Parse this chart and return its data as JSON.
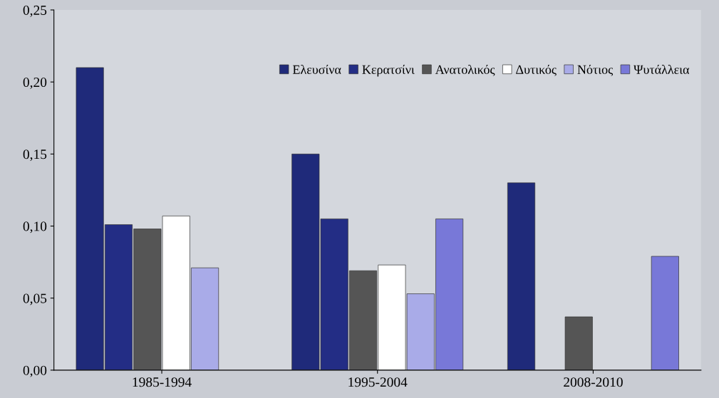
{
  "chart_data": {
    "type": "bar",
    "categories": [
      "1985-1994",
      "1995-2004",
      "2008-2010"
    ],
    "series": [
      {
        "name": "Ελευσίνα",
        "color": "#1f2a7a",
        "values": [
          0.21,
          0.15,
          0.13
        ]
      },
      {
        "name": "Κερατσίνι",
        "color": "#232d85",
        "values": [
          0.101,
          0.105,
          null
        ]
      },
      {
        "name": "Ανατολικός",
        "color": "#555555",
        "values": [
          0.098,
          0.069,
          0.037
        ]
      },
      {
        "name": "Δυτικός",
        "color": "#ffffff",
        "values": [
          0.107,
          0.073,
          null
        ]
      },
      {
        "name": "Νότιος",
        "color": "#a9abe8",
        "values": [
          0.071,
          0.053,
          null
        ]
      },
      {
        "name": "Ψυτάλλεια",
        "color": "#7878d8",
        "values": [
          null,
          0.105,
          0.079
        ]
      }
    ],
    "ylim": [
      0,
      0.25
    ],
    "yticks": [
      {
        "value": 0,
        "label": "0,00"
      },
      {
        "value": 0.05,
        "label": "0,05"
      },
      {
        "value": 0.1,
        "label": "0,10"
      },
      {
        "value": 0.15,
        "label": "0,15"
      },
      {
        "value": 0.2,
        "label": "0,20"
      },
      {
        "value": 0.25,
        "label": "0,25"
      }
    ],
    "grid": false,
    "legend": "top right"
  }
}
